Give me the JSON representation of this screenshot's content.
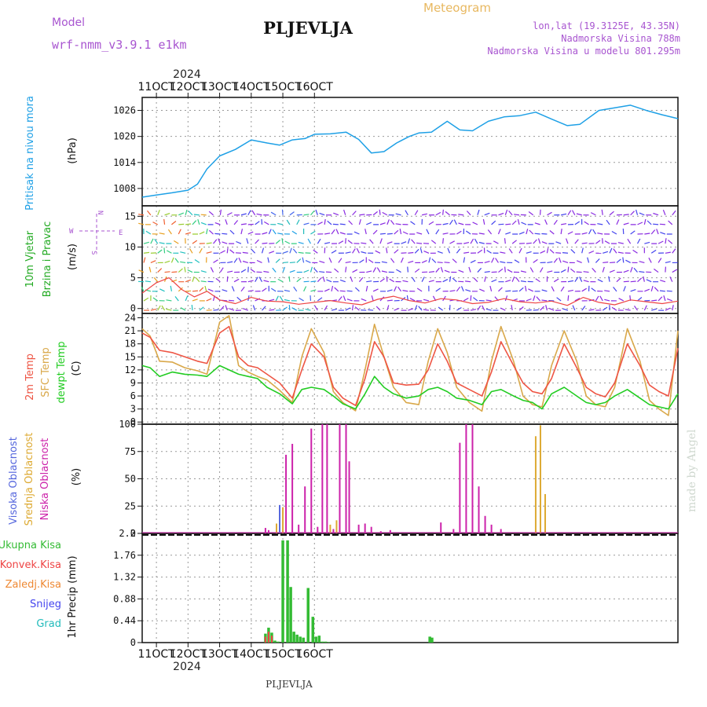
{
  "header": {
    "model_label": "Model",
    "model_name": "wrf-nmm_v3.9.1 e1km",
    "station": "PLJEVLJA",
    "product": "Meteogram",
    "lonlat": "lon,lat (19.3125E, 43.35N)",
    "elevation": "Nadmorska Visina 788m",
    "model_elevation": "Nadmorska Visina u modelu 801.295m",
    "footer_station": "PLJEVLJA",
    "watermark": "made by Angel",
    "year_top": "2024",
    "year_bottom": "2024"
  },
  "colors": {
    "pressure": "#1ea0e6",
    "temp2m": "#ee5544",
    "sfc_temp": "#d9a84a",
    "dewpoint": "#22cc22",
    "high_cloud": "#5566dd",
    "mid_cloud": "#ddaa33",
    "low_cloud": "#cc22aa",
    "precip_total": "#33bb33",
    "precip_conv": "#ee4444",
    "precip_frozen": "#ee8833",
    "snow": "#4444ee",
    "hail": "#22bbbb",
    "title_purple": "#a855d0",
    "meteogram_gold": "#e8b860"
  },
  "chart_data": [
    {
      "type": "line",
      "panel": "pressure",
      "ylabel_1": "Pritisak na nivou mora",
      "ylabel_2": "(hPa)",
      "yticks": [
        "1008",
        "1014",
        "1020",
        "1026"
      ],
      "ylim": [
        1004,
        1029
      ],
      "x_unit": "day of October 2024",
      "x": [
        10.55,
        11.0,
        11.5,
        12.0,
        12.3,
        12.6,
        13.0,
        13.5,
        14.0,
        14.5,
        14.9,
        15.3,
        15.7,
        16.0,
        16.5,
        17.0,
        17.4,
        17.8,
        18.2,
        18.6,
        19.0,
        19.3,
        19.7,
        20.2,
        20.6,
        21.0,
        21.5,
        22.0,
        22.5,
        23.0,
        23.5,
        24.0,
        24.4,
        25.0,
        25.5,
        26.0,
        26.5,
        27.0,
        27.5
      ],
      "values": [
        1006.0,
        1006.5,
        1007.0,
        1007.6,
        1009.0,
        1012.5,
        1015.5,
        1017.0,
        1019.2,
        1018.5,
        1018.0,
        1019.2,
        1019.5,
        1020.5,
        1020.6,
        1021.0,
        1019.3,
        1016.2,
        1016.5,
        1018.5,
        1020.0,
        1020.8,
        1021.0,
        1023.5,
        1021.5,
        1021.3,
        1023.5,
        1024.5,
        1024.8,
        1025.6,
        1024.0,
        1022.5,
        1022.8,
        1026.0,
        1026.6,
        1027.2,
        1026.0,
        1025.0,
        1024.1
      ]
    },
    {
      "type": "vector",
      "panel": "wind",
      "ylabel_1": "10m Vjetar",
      "ylabel_2": "Brzina i Pravac",
      "ylabel_3": "(m/s)",
      "compass_n": "N",
      "compass_s": "S",
      "compass_e": "E",
      "compass_w": "W",
      "yticks": [
        "0",
        "5",
        "10",
        "15"
      ],
      "ylim": [
        -0.8,
        16.7
      ],
      "x_unit": "day of October 2024",
      "speed_x": [
        10.55,
        11.0,
        11.4,
        11.8,
        12.2,
        12.6,
        13.0,
        13.5,
        14.0,
        14.5,
        15.0,
        15.5,
        16.0,
        16.5,
        17.0,
        17.5,
        18.0,
        18.5,
        19.0,
        19.5,
        20.0,
        20.5,
        21.0,
        21.5,
        22.0,
        22.5,
        23.0,
        23.5,
        24.0,
        24.5,
        25.0,
        25.5,
        26.0,
        26.5,
        27.0,
        27.5
      ],
      "speed": [
        2.5,
        4.2,
        5.0,
        3.1,
        1.9,
        2.8,
        1.4,
        0.8,
        1.8,
        1.2,
        1.1,
        0.7,
        1.0,
        1.3,
        0.9,
        0.6,
        1.5,
        2.0,
        1.3,
        0.9,
        1.6,
        1.4,
        0.8,
        1.0,
        1.6,
        1.1,
        0.9,
        1.2,
        0.5,
        1.8,
        1.0,
        0.6,
        1.4,
        1.1,
        0.8,
        1.2
      ]
    },
    {
      "type": "line",
      "panel": "temperature",
      "ylabel_1": "2m Temp",
      "ylabel_2": "SFC Temp",
      "ylabel_3": "dewpt Temp",
      "ylabel_4": "(C)",
      "yticks": [
        "0",
        "3",
        "6",
        "9",
        "12",
        "15",
        "18",
        "21",
        "24"
      ],
      "ylim": [
        -0.5,
        25
      ],
      "x_unit": "day of October 2024",
      "series": [
        {
          "key": "sfc_temp",
          "x": [
            10.55,
            10.8,
            11.1,
            11.5,
            11.9,
            12.3,
            12.6,
            13.0,
            13.3,
            13.6,
            13.9,
            14.2,
            14.5,
            14.9,
            15.3,
            15.6,
            15.9,
            16.3,
            16.6,
            16.9,
            17.3,
            17.6,
            17.9,
            18.2,
            18.5,
            18.9,
            19.3,
            19.6,
            19.9,
            20.2,
            20.5,
            20.9,
            21.3,
            21.6,
            21.9,
            22.3,
            22.6,
            22.9,
            23.2,
            23.5,
            23.9,
            24.3,
            24.6,
            24.9,
            25.2,
            25.5,
            25.9,
            26.3,
            26.6,
            26.9,
            27.2,
            27.5
          ],
          "values": [
            21.5,
            19.8,
            14.0,
            13.8,
            12.5,
            11.8,
            11.0,
            23.0,
            24.5,
            13.0,
            11.5,
            10.5,
            9.7,
            7.3,
            4.5,
            15.0,
            21.5,
            16.0,
            7.0,
            4.5,
            2.6,
            12.0,
            22.5,
            15.0,
            8.0,
            4.5,
            4.0,
            14.0,
            21.5,
            16.0,
            8.0,
            4.5,
            2.5,
            14.0,
            22.0,
            14.0,
            6.0,
            4.0,
            3.5,
            13.0,
            21.0,
            14.0,
            6.0,
            4.0,
            3.5,
            8.0,
            21.5,
            14.0,
            5.0,
            3.0,
            1.5,
            21.0
          ]
        },
        {
          "key": "temp2m",
          "x": [
            10.55,
            10.8,
            11.1,
            11.5,
            11.9,
            12.3,
            12.6,
            13.0,
            13.3,
            13.6,
            13.9,
            14.2,
            14.5,
            14.9,
            15.3,
            15.6,
            15.9,
            16.3,
            16.6,
            16.9,
            17.3,
            17.6,
            17.9,
            18.2,
            18.5,
            18.9,
            19.3,
            19.6,
            19.9,
            20.2,
            20.5,
            20.9,
            21.3,
            21.6,
            21.9,
            22.3,
            22.6,
            22.9,
            23.2,
            23.5,
            23.9,
            24.3,
            24.6,
            24.9,
            25.2,
            25.5,
            25.9,
            26.3,
            26.6,
            26.9,
            27.2,
            27.5
          ],
          "values": [
            20.5,
            19.5,
            16.5,
            16.0,
            15.0,
            14.0,
            13.5,
            20.5,
            22.0,
            15.0,
            13.0,
            12.5,
            11.0,
            9.0,
            5.5,
            12.0,
            18.0,
            15.0,
            8.0,
            5.5,
            3.8,
            10.0,
            18.5,
            15.0,
            9.0,
            8.5,
            8.7,
            12.0,
            18.0,
            14.0,
            9.0,
            7.5,
            6.0,
            11.5,
            18.5,
            13.0,
            9.0,
            7.0,
            6.5,
            10.0,
            18.0,
            12.5,
            8.0,
            6.5,
            5.8,
            9.0,
            18.0,
            13.0,
            8.5,
            7.0,
            6.0,
            17.0
          ]
        },
        {
          "key": "dewpoint",
          "x": [
            10.55,
            10.8,
            11.1,
            11.5,
            11.9,
            12.3,
            12.6,
            13.0,
            13.3,
            13.6,
            13.9,
            14.2,
            14.5,
            14.9,
            15.3,
            15.6,
            15.9,
            16.3,
            16.6,
            16.9,
            17.3,
            17.6,
            17.9,
            18.2,
            18.5,
            18.9,
            19.3,
            19.6,
            19.9,
            20.2,
            20.5,
            20.9,
            21.3,
            21.6,
            21.9,
            22.3,
            22.6,
            22.9,
            23.2,
            23.5,
            23.9,
            24.3,
            24.6,
            24.9,
            25.2,
            25.5,
            25.9,
            26.3,
            26.6,
            26.9,
            27.2,
            27.5
          ],
          "values": [
            13.0,
            12.5,
            10.5,
            11.5,
            11.0,
            10.8,
            10.5,
            13.0,
            12.0,
            11.0,
            10.5,
            10.0,
            8.0,
            6.5,
            4.2,
            7.5,
            8.0,
            7.5,
            6.0,
            4.2,
            3.0,
            6.5,
            10.5,
            8.0,
            6.5,
            5.5,
            6.0,
            7.5,
            8.0,
            7.0,
            5.5,
            5.0,
            4.0,
            7.0,
            7.5,
            6.0,
            5.0,
            4.5,
            3.0,
            6.5,
            8.0,
            6.0,
            4.5,
            4.0,
            4.5,
            6.0,
            7.5,
            5.5,
            4.0,
            3.5,
            3.0,
            6.5
          ]
        }
      ]
    },
    {
      "type": "bar",
      "panel": "cloud",
      "ylabel_1": "Visoka Oblacnost",
      "ylabel_2": "Srednja Oblacnost",
      "ylabel_3": "Niska Oblacnost",
      "ylabel_4": "(%)",
      "yticks": [
        "0",
        "25",
        "50",
        "75",
        "100"
      ],
      "ylim": [
        0,
        100
      ],
      "x_unit": "day of October 2024",
      "series": [
        {
          "key": "low_cloud",
          "x": [
            14.45,
            14.55,
            15.1,
            15.3,
            15.5,
            15.7,
            15.9,
            16.1,
            16.25,
            16.4,
            16.6,
            16.8,
            17.0,
            17.1,
            17.4,
            17.6,
            17.8,
            18.1,
            18.4,
            20.0,
            20.4,
            20.6,
            20.8,
            21.0,
            21.2,
            21.4,
            21.6,
            21.9,
            23.3
          ],
          "values": [
            5,
            3,
            72,
            82,
            8,
            43,
            96,
            6,
            100,
            100,
            4,
            100,
            100,
            66,
            8,
            9,
            6,
            2,
            3,
            10,
            4,
            83,
            100,
            100,
            43,
            16,
            8,
            4,
            3
          ]
        },
        {
          "key": "mid_cloud",
          "x": [
            14.8,
            15.0,
            16.5,
            16.7,
            23.0,
            23.15,
            23.3
          ],
          "values": [
            9,
            24,
            8,
            12,
            89,
            99,
            36
          ]
        },
        {
          "key": "high_cloud",
          "x": [
            14.9
          ],
          "values": [
            26
          ]
        }
      ]
    },
    {
      "type": "bar",
      "panel": "precip",
      "legend_1": "Ukupna Kisa",
      "legend_2": "Konvek.Kisa",
      "legend_3": "Zaledj.Kisa",
      "legend_4": "Snijeg",
      "legend_5": "Grad",
      "ylabel_1": "1hr Precip (mm)",
      "yticks": [
        "0",
        "0.44",
        "0.88",
        "1.32",
        "1.76",
        "2.2"
      ],
      "ylim": [
        0,
        2.2
      ],
      "x_unit": "day of October 2024",
      "series": [
        {
          "key": "precip_total",
          "x": [
            14.45,
            14.55,
            14.65,
            14.75,
            14.85,
            15.0,
            15.15,
            15.25,
            15.35,
            15.45,
            15.55,
            15.65,
            15.8,
            15.95,
            16.05,
            16.15,
            16.25,
            16.35,
            16.45,
            19.65,
            19.72
          ],
          "values": [
            0.18,
            0.3,
            0.2,
            0.04,
            0.02,
            2.06,
            2.06,
            1.12,
            0.22,
            0.16,
            0.12,
            0.1,
            1.1,
            0.52,
            0.12,
            0.14,
            0.02,
            0.02,
            0.01,
            0.12,
            0.1
          ]
        },
        {
          "key": "precip_conv",
          "x": [
            14.45,
            14.55,
            14.65
          ],
          "values": [
            0.12,
            0.22,
            0.14
          ]
        }
      ]
    }
  ],
  "xaxis": {
    "ticks": [
      "11OCT",
      "12OCT",
      "13OCT",
      "14OCT",
      "15OCT",
      "16OCT"
    ],
    "tick_days": [
      11,
      12,
      13,
      14,
      15,
      16
    ],
    "xlim": [
      10.55,
      27.5
    ]
  }
}
